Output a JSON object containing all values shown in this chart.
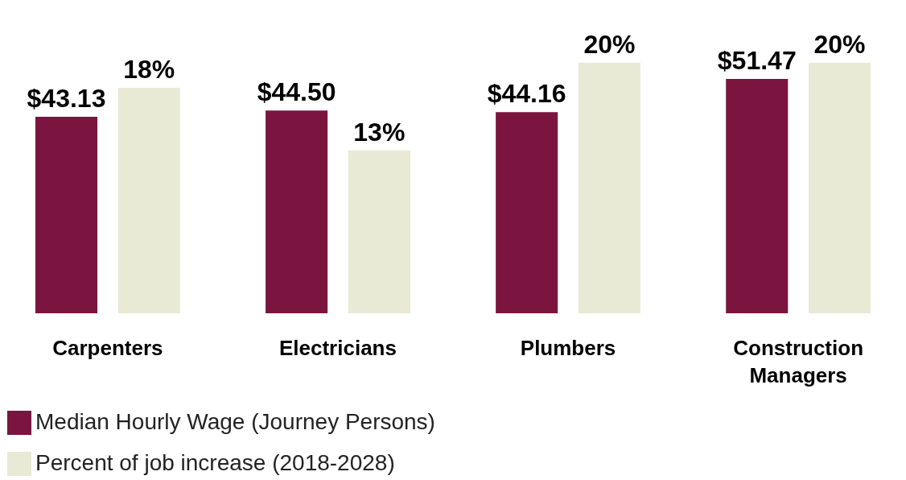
{
  "chart_data": {
    "type": "bar",
    "categories": [
      "Carpenters",
      "Electricians",
      "Plumbers",
      "Construction Managers"
    ],
    "series": [
      {
        "name": "Median Hourly Wage (Journey Persons)",
        "color": "#7b1540",
        "values": [
          43.13,
          44.5,
          44.16,
          51.47
        ],
        "value_labels": [
          "$43.13",
          "$44.50",
          "$44.16",
          "$51.47"
        ]
      },
      {
        "name": "Percent of job increase (2018-2028)",
        "color": "#e8ead6",
        "axis": "y2",
        "values": [
          18,
          13,
          20,
          20
        ],
        "value_labels": [
          "18%",
          "13%",
          "20%",
          "20%"
        ]
      }
    ],
    "tick_labels": "x",
    "legend": "bottom"
  }
}
